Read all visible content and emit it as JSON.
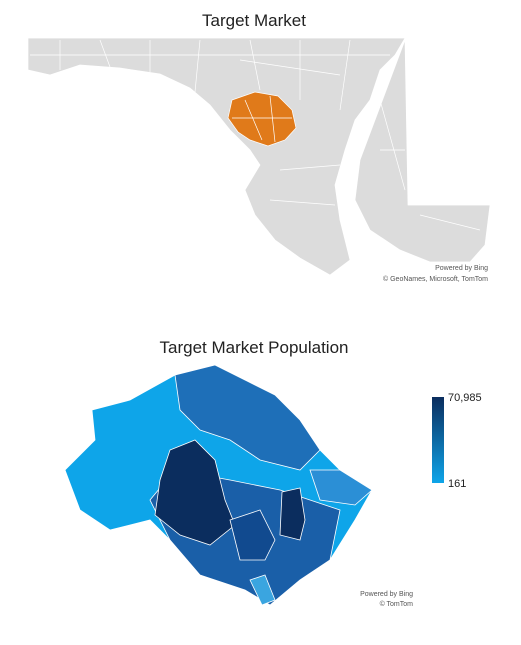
{
  "maps": [
    {
      "title": "Target Market",
      "attribution": [
        "Powered by Bing",
        "© GeoNames, Microsoft, TomTom"
      ]
    },
    {
      "title": "Target Market Population",
      "attribution": [
        "Powered by Bing",
        "© TomTom"
      ],
      "legend": {
        "max": {
          "value": 70985,
          "label": "70,985"
        },
        "min": 161
      }
    }
  ]
}
